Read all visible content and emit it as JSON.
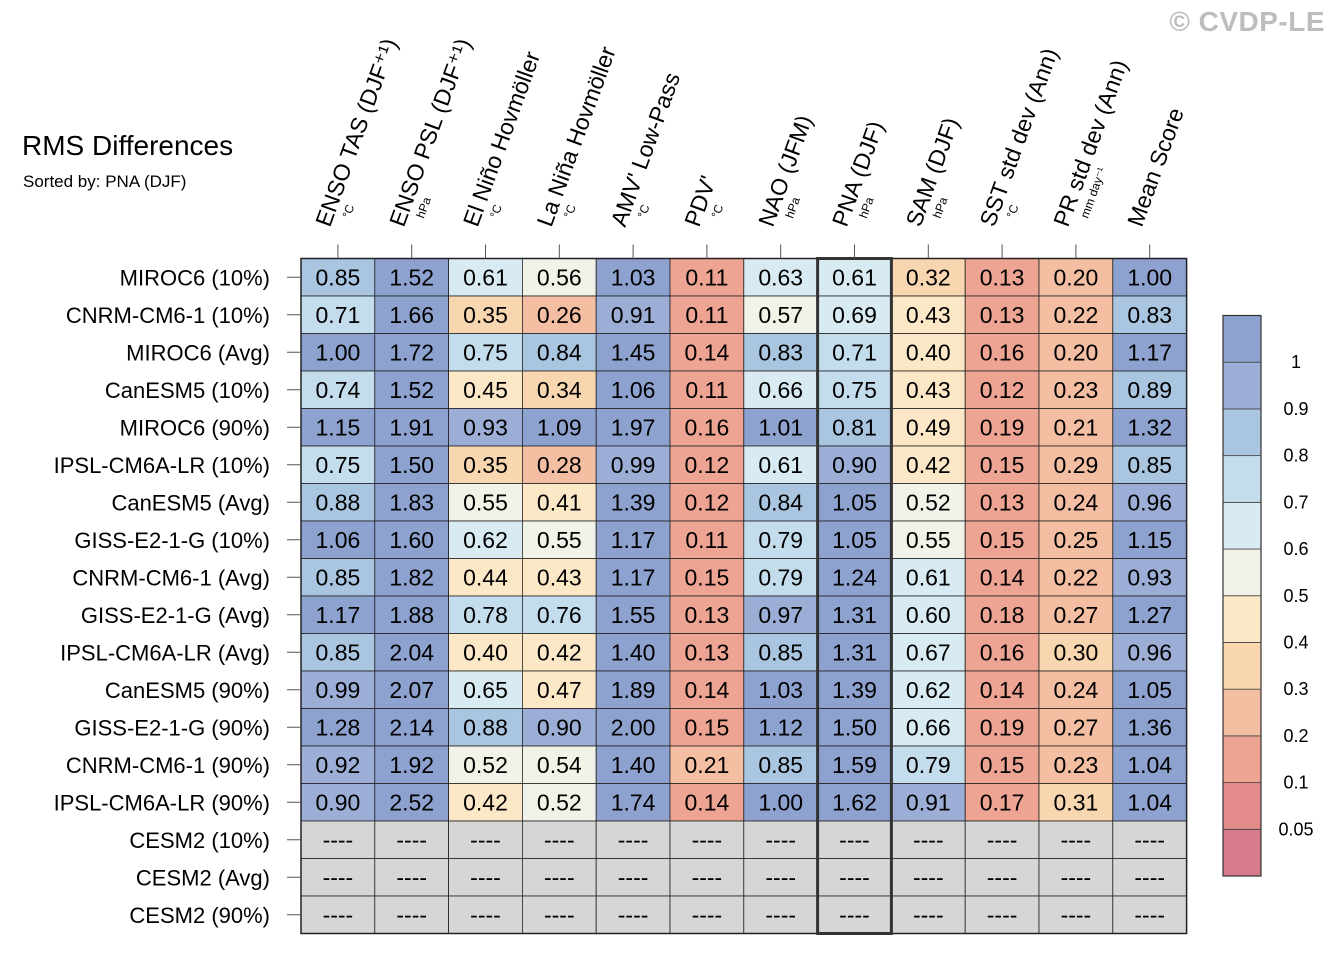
{
  "watermark": "© CVDP-LE",
  "chart_data": {
    "type": "heatmap",
    "title": "RMS Differences",
    "subtitle": "Sorted by: PNA (DJF)",
    "highlighted_column": "PNA (DJF)",
    "columns": [
      {
        "label": "ENSO TAS (DJF⁺¹)",
        "unit": "°C"
      },
      {
        "label": "ENSO PSL (DJF⁺¹)",
        "unit": "hPa"
      },
      {
        "label": "El Niño Hovmöller",
        "unit": "°C"
      },
      {
        "label": "La Niña Hovmöller",
        "unit": "°C"
      },
      {
        "label": "AMV' Low-Pass",
        "unit": "°C"
      },
      {
        "label": "PDV'",
        "unit": "°C"
      },
      {
        "label": "NAO (JFM)",
        "unit": "hPa"
      },
      {
        "label": "PNA (DJF)",
        "unit": "hPa"
      },
      {
        "label": "SAM (DJF)",
        "unit": "hPa"
      },
      {
        "label": "SST std dev (Ann)",
        "unit": "°C"
      },
      {
        "label": "PR std dev (Ann)",
        "unit": "mm day⁻¹"
      },
      {
        "label": "Mean Score",
        "unit": ""
      }
    ],
    "rows": [
      {
        "label": "MIROC6 (10%)",
        "values": [
          0.85,
          1.52,
          0.61,
          0.56,
          1.03,
          0.11,
          0.63,
          0.61,
          0.32,
          0.13,
          0.2,
          1.0
        ]
      },
      {
        "label": "CNRM-CM6-1 (10%)",
        "values": [
          0.71,
          1.66,
          0.35,
          0.26,
          0.91,
          0.11,
          0.57,
          0.69,
          0.43,
          0.13,
          0.22,
          0.83
        ]
      },
      {
        "label": "MIROC6 (Avg)",
        "values": [
          1.0,
          1.72,
          0.75,
          0.84,
          1.45,
          0.14,
          0.83,
          0.71,
          0.4,
          0.16,
          0.2,
          1.17
        ]
      },
      {
        "label": "CanESM5 (10%)",
        "values": [
          0.74,
          1.52,
          0.45,
          0.34,
          1.06,
          0.11,
          0.66,
          0.75,
          0.43,
          0.12,
          0.23,
          0.89
        ]
      },
      {
        "label": "MIROC6 (90%)",
        "values": [
          1.15,
          1.91,
          0.93,
          1.09,
          1.97,
          0.16,
          1.01,
          0.81,
          0.49,
          0.19,
          0.21,
          1.32
        ]
      },
      {
        "label": "IPSL-CM6A-LR (10%)",
        "values": [
          0.75,
          1.5,
          0.35,
          0.28,
          0.99,
          0.12,
          0.61,
          0.9,
          0.42,
          0.15,
          0.29,
          0.85
        ]
      },
      {
        "label": "CanESM5 (Avg)",
        "values": [
          0.88,
          1.83,
          0.55,
          0.41,
          1.39,
          0.12,
          0.84,
          1.05,
          0.52,
          0.13,
          0.24,
          0.96
        ]
      },
      {
        "label": "GISS-E2-1-G (10%)",
        "values": [
          1.06,
          1.6,
          0.62,
          0.55,
          1.17,
          0.11,
          0.79,
          1.05,
          0.55,
          0.15,
          0.25,
          1.15
        ]
      },
      {
        "label": "CNRM-CM6-1 (Avg)",
        "values": [
          0.85,
          1.82,
          0.44,
          0.43,
          1.17,
          0.15,
          0.79,
          1.24,
          0.61,
          0.14,
          0.22,
          0.93
        ]
      },
      {
        "label": "GISS-E2-1-G (Avg)",
        "values": [
          1.17,
          1.88,
          0.78,
          0.76,
          1.55,
          0.13,
          0.97,
          1.31,
          0.6,
          0.18,
          0.27,
          1.27
        ]
      },
      {
        "label": "IPSL-CM6A-LR (Avg)",
        "values": [
          0.85,
          2.04,
          0.4,
          0.42,
          1.4,
          0.13,
          0.85,
          1.31,
          0.67,
          0.16,
          0.3,
          0.96
        ]
      },
      {
        "label": "CanESM5 (90%)",
        "values": [
          0.99,
          2.07,
          0.65,
          0.47,
          1.89,
          0.14,
          1.03,
          1.39,
          0.62,
          0.14,
          0.24,
          1.05
        ]
      },
      {
        "label": "GISS-E2-1-G (90%)",
        "values": [
          1.28,
          2.14,
          0.88,
          0.9,
          2.0,
          0.15,
          1.12,
          1.5,
          0.66,
          0.19,
          0.27,
          1.36
        ]
      },
      {
        "label": "CNRM-CM6-1 (90%)",
        "values": [
          0.92,
          1.92,
          0.52,
          0.54,
          1.4,
          0.21,
          0.85,
          1.59,
          0.79,
          0.15,
          0.23,
          1.04
        ]
      },
      {
        "label": "IPSL-CM6A-LR (90%)",
        "values": [
          0.9,
          2.52,
          0.42,
          0.52,
          1.74,
          0.14,
          1.0,
          1.62,
          0.91,
          0.17,
          0.31,
          1.04
        ]
      },
      {
        "label": "CESM2 (10%)",
        "values": [
          null,
          null,
          null,
          null,
          null,
          null,
          null,
          null,
          null,
          null,
          null,
          null
        ]
      },
      {
        "label": "CESM2 (Avg)",
        "values": [
          null,
          null,
          null,
          null,
          null,
          null,
          null,
          null,
          null,
          null,
          null,
          null
        ]
      },
      {
        "label": "CESM2 (90%)",
        "values": [
          null,
          null,
          null,
          null,
          null,
          null,
          null,
          null,
          null,
          null,
          null,
          null
        ]
      }
    ],
    "missing_text": "----",
    "missing_color": "#d6d6d6",
    "colorbar": {
      "levels": [
        0.05,
        0.1,
        0.2,
        0.3,
        0.4,
        0.5,
        0.6,
        0.7,
        0.8,
        0.9,
        1
      ],
      "colors": [
        "#d67b8c",
        "#e48c8b",
        "#eea493",
        "#f3bea2",
        "#f8d6b0",
        "#fce8c6",
        "#f1f2e8",
        "#d9ebf2",
        "#c4dded",
        "#a9c5e0",
        "#9caed5",
        "#8ea2cf"
      ]
    }
  }
}
